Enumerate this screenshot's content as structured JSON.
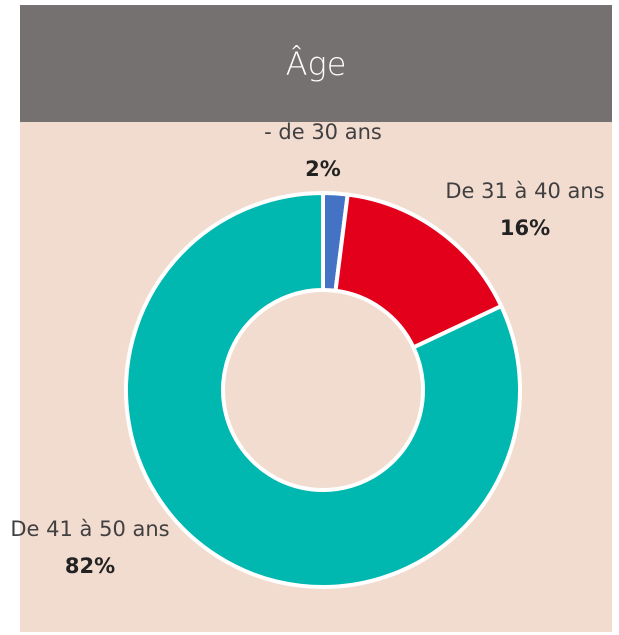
{
  "chart_data": {
    "type": "donut",
    "title": "Âge",
    "categories": [
      "- de 30 ans",
      "De 31 à 40 ans",
      "De 41 à 50 ans"
    ],
    "values": [
      2,
      16,
      82
    ],
    "value_labels": [
      "2%",
      "16%",
      "82%"
    ],
    "colors": [
      "#4472c4",
      "#e2001a",
      "#00b8b0"
    ]
  }
}
